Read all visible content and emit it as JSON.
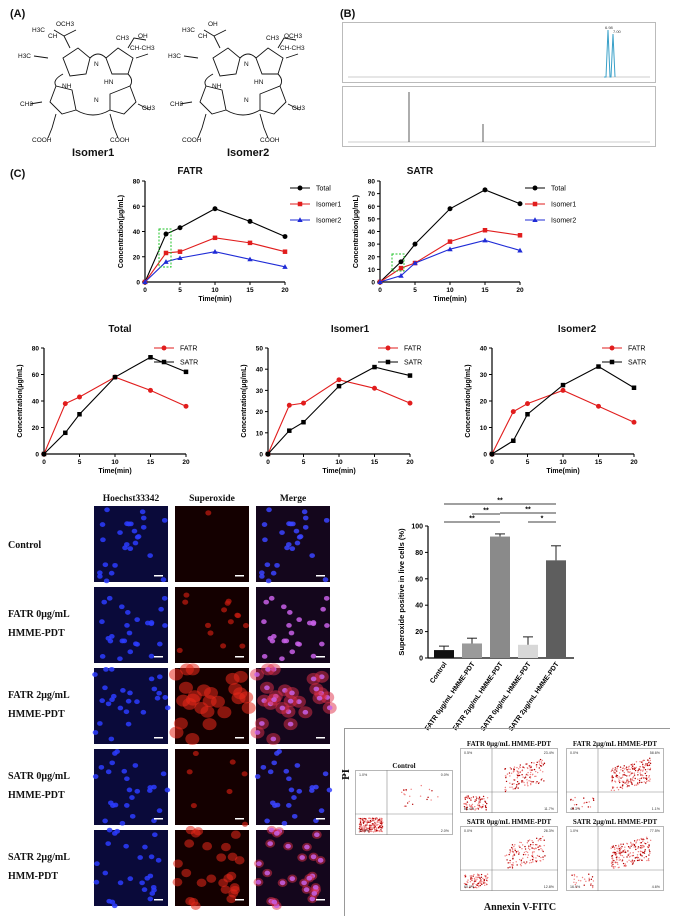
{
  "panels": {
    "A": "(A)",
    "B": "(B)",
    "C": "(C)"
  },
  "structures": {
    "isomer1": {
      "name": "Isomer1",
      "labels": [
        "OCH3",
        "H3C",
        "CH",
        "H3C",
        "CH3",
        "OH",
        "CH-CH3",
        "NH",
        "HN",
        "COOH",
        "COOH",
        "CH3",
        "CH3",
        "N",
        "N"
      ]
    },
    "isomer2": {
      "name": "Isomer2",
      "labels": [
        "OH",
        "H3C",
        "CH",
        "H3C",
        "CH3",
        "OCH3",
        "CH-CH3",
        "NH",
        "HN",
        "COOH",
        "COOH",
        "CH3",
        "CH3",
        "N",
        "N"
      ]
    }
  },
  "hplc": {
    "top_peak_labels": [
      "6.98",
      "7.00"
    ]
  },
  "charts_top": [
    {
      "title": "FATR",
      "chart_data": {
        "type": "line",
        "title": "FATR",
        "xlabel": "Time(min)",
        "ylabel": "Concentration(μg/mL)",
        "x": [
          0,
          3,
          5,
          10,
          15,
          20
        ],
        "xlim": [
          0,
          20
        ],
        "ylim": [
          0,
          80
        ],
        "xticks": [
          0,
          5,
          10,
          15,
          20
        ],
        "yticks": [
          0,
          20,
          40,
          60,
          80
        ],
        "legend": "right",
        "series": [
          {
            "name": "Total",
            "color": "#000000",
            "marker": "circle",
            "values": [
              0,
              38,
              43,
              58,
              48,
              36
            ]
          },
          {
            "name": "Isomer1",
            "color": "#e11d1d",
            "marker": "square",
            "values": [
              0,
              23,
              24,
              35,
              31,
              24
            ]
          },
          {
            "name": "Isomer2",
            "color": "#1f2bd6",
            "marker": "triangle",
            "values": [
              0,
              16,
              19,
              24,
              18,
              12
            ]
          }
        ]
      }
    },
    {
      "title": "SATR",
      "chart_data": {
        "type": "line",
        "title": "SATR",
        "xlabel": "Time(min)",
        "ylabel": "Concentration(μg/mL)",
        "x": [
          0,
          3,
          5,
          10,
          15,
          20
        ],
        "xlim": [
          0,
          20
        ],
        "ylim": [
          0,
          80
        ],
        "xticks": [
          0,
          5,
          10,
          15,
          20
        ],
        "yticks": [
          0,
          10,
          20,
          30,
          40,
          50,
          60,
          70,
          80
        ],
        "legend": "right",
        "series": [
          {
            "name": "Total",
            "color": "#000000",
            "marker": "circle",
            "values": [
              0,
              16,
              30,
              58,
              73,
              62
            ]
          },
          {
            "name": "Isomer1",
            "color": "#e11d1d",
            "marker": "square",
            "values": [
              0,
              11,
              15,
              32,
              41,
              37
            ]
          },
          {
            "name": "Isomer2",
            "color": "#1f2bd6",
            "marker": "triangle",
            "values": [
              0,
              5,
              15,
              26,
              33,
              25
            ]
          }
        ]
      }
    }
  ],
  "charts_bottom": [
    {
      "title": "Total",
      "chart_data": {
        "type": "line",
        "title": "Total",
        "xlabel": "Time(min)",
        "ylabel": "Concentration(μg/mL)",
        "x": [
          0,
          3,
          5,
          10,
          15,
          20
        ],
        "xlim": [
          0,
          20
        ],
        "ylim": [
          0,
          80
        ],
        "xticks": [
          0,
          5,
          10,
          15,
          20
        ],
        "yticks": [
          0,
          20,
          40,
          60,
          80
        ],
        "legend": "right",
        "series": [
          {
            "name": "FATR",
            "color": "#e11d1d",
            "marker": "circle",
            "values": [
              0,
              38,
              43,
              58,
              48,
              36
            ]
          },
          {
            "name": "SATR",
            "color": "#000000",
            "marker": "square",
            "values": [
              0,
              16,
              30,
              58,
              73,
              62
            ]
          }
        ]
      }
    },
    {
      "title": "Isomer1",
      "chart_data": {
        "type": "line",
        "title": "Isomer1",
        "xlabel": "Time(min)",
        "ylabel": "Concentration(μg/mL)",
        "x": [
          0,
          3,
          5,
          10,
          15,
          20
        ],
        "xlim": [
          0,
          20
        ],
        "ylim": [
          0,
          50
        ],
        "xticks": [
          0,
          5,
          10,
          15,
          20
        ],
        "yticks": [
          0,
          10,
          20,
          30,
          40,
          50
        ],
        "legend": "right",
        "series": [
          {
            "name": "FATR",
            "color": "#e11d1d",
            "marker": "circle",
            "values": [
              0,
              23,
              24,
              35,
              31,
              24
            ]
          },
          {
            "name": "SATR",
            "color": "#000000",
            "marker": "square",
            "values": [
              0,
              11,
              15,
              32,
              41,
              37
            ]
          }
        ]
      }
    },
    {
      "title": "Isomer2",
      "chart_data": {
        "type": "line",
        "title": "Isomer2",
        "xlabel": "Time(min)",
        "ylabel": "Concentration(μg/mL)",
        "x": [
          0,
          3,
          5,
          10,
          15,
          20
        ],
        "xlim": [
          0,
          20
        ],
        "ylim": [
          0,
          40
        ],
        "xticks": [
          0,
          5,
          10,
          15,
          20
        ],
        "yticks": [
          0,
          10,
          20,
          30,
          40
        ],
        "legend": "right",
        "series": [
          {
            "name": "FATR",
            "color": "#e11d1d",
            "marker": "circle",
            "values": [
              0,
              16,
              19,
              24,
              18,
              12
            ]
          },
          {
            "name": "SATR",
            "color": "#000000",
            "marker": "square",
            "values": [
              0,
              5,
              15,
              26,
              33,
              25
            ]
          }
        ]
      }
    }
  ],
  "microscopy": {
    "columns": [
      "Hoechst33342",
      "Superoxide",
      "Merge"
    ],
    "rows": [
      {
        "label": "Control",
        "red_level": 0.05
      },
      {
        "label": "FATR 0μg/mL HMME-PDT",
        "red_level": 0.25
      },
      {
        "label": "FATR 2μg/mL HMME-PDT",
        "red_level": 1.0
      },
      {
        "label": "SATR 0μg/mL HMME-PDT",
        "red_level": 0.15
      },
      {
        "label": "SATR 2μg/mL HMM-PDT",
        "red_level": 0.7
      }
    ]
  },
  "bar_chart": {
    "chart_data": {
      "type": "bar",
      "ylabel": "Superoxide positive in live cells (%)",
      "ylim": [
        0,
        100
      ],
      "yticks": [
        0,
        20,
        40,
        60,
        80,
        100
      ],
      "categories": [
        "Control",
        "FATR 0μg/mL HMME-PDT",
        "FATR 2μg/mL HMME-PDT",
        "SATR 0μg/mL HMME-PDT",
        "SATR 2μg/mL HMME-PDT"
      ],
      "values": [
        6,
        11,
        92,
        10,
        74
      ],
      "errors": [
        3,
        4,
        2,
        6,
        11
      ],
      "colors": [
        "#111111",
        "#9a9a9a",
        "#8a8a8a",
        "#d8d8d8",
        "#5e5e5e"
      ],
      "significance": [
        "**",
        "**",
        "**",
        "*",
        "**"
      ]
    }
  },
  "flow": {
    "ylabel": "PI",
    "xlabel": "Annexin V-FITC",
    "plots": [
      {
        "title": "Control",
        "q": [
          "1.0%",
          "0.0%",
          "97.0%",
          "2.0%"
        ],
        "density": 0.1
      },
      {
        "title": "FATR 0μg/mL HMME-PDT",
        "q": [
          "0.5%",
          "23.4%",
          "64.4%",
          "11.7%"
        ],
        "density": 0.6
      },
      {
        "title": "FATR 2μg/mL HMME-PDT",
        "q": [
          "0.0%",
          "58.6%",
          "40.3%",
          "1.1%"
        ],
        "density": 0.9
      },
      {
        "title": "SATR 0μg/mL HMME-PDT",
        "q": [
          "0.0%",
          "26.3%",
          "60.9%",
          "12.8%"
        ],
        "density": 0.6
      },
      {
        "title": "SATR 2μg/mL HMME-PDT",
        "q": [
          "1.0%",
          "77.5%",
          "16.9%",
          "4.6%"
        ],
        "density": 0.9
      }
    ]
  }
}
